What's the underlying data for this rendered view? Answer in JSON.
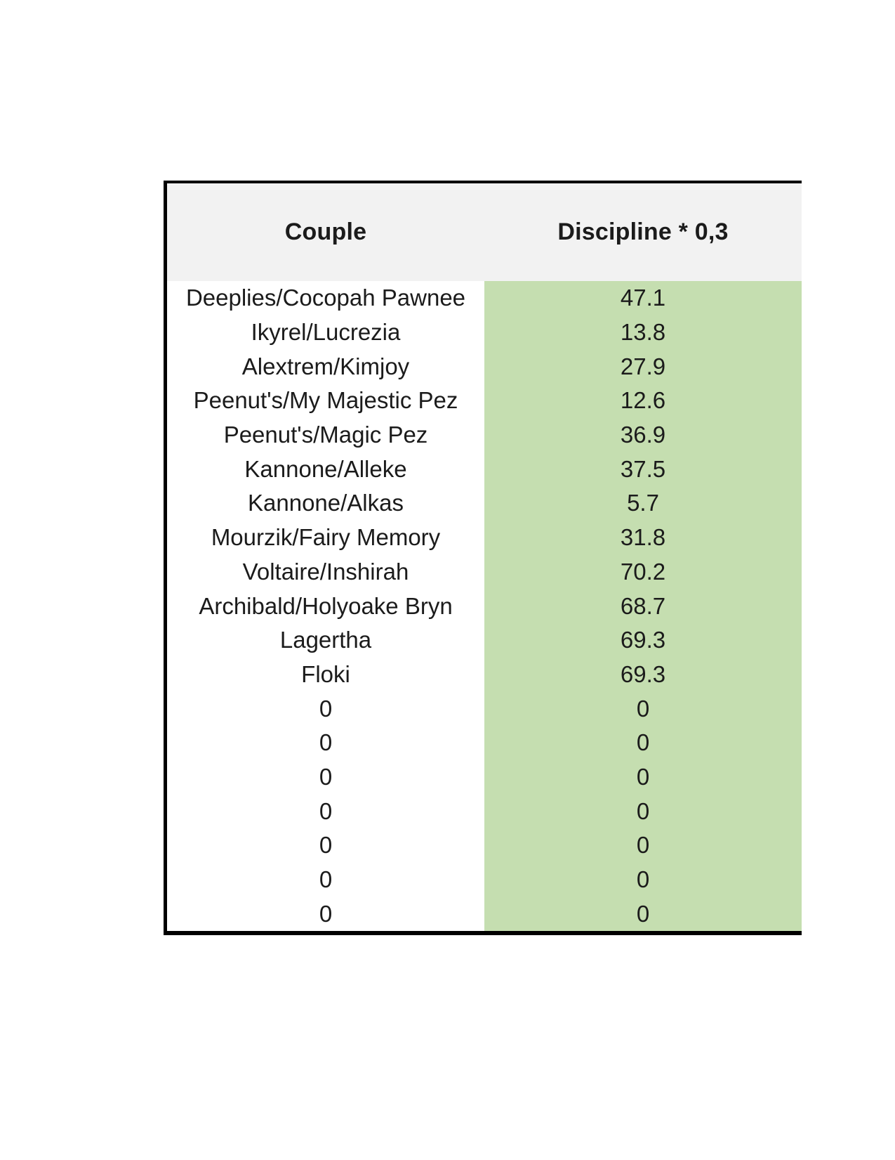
{
  "table": {
    "columns": [
      {
        "label": "Couple"
      },
      {
        "label": "Discipline * 0,3"
      }
    ],
    "rows": [
      {
        "couple": "Deeplies/Cocopah Pawnee",
        "value": "47.1"
      },
      {
        "couple": "Ikyrel/Lucrezia",
        "value": "13.8"
      },
      {
        "couple": "Alextrem/Kimjoy",
        "value": "27.9"
      },
      {
        "couple": "Peenut's/My Majestic Pez",
        "value": "12.6"
      },
      {
        "couple": "Peenut's/Magic Pez",
        "value": "36.9"
      },
      {
        "couple": "Kannone/Alleke",
        "value": "37.5"
      },
      {
        "couple": "Kannone/Alkas",
        "value": "5.7"
      },
      {
        "couple": "Mourzik/Fairy Memory",
        "value": "31.8"
      },
      {
        "couple": "Voltaire/Inshirah",
        "value": "70.2"
      },
      {
        "couple": "Archibald/Holyoake Bryn",
        "value": "68.7"
      },
      {
        "couple": "Lagertha",
        "value": "69.3"
      },
      {
        "couple": "Floki",
        "value": "69.3"
      },
      {
        "couple": "0",
        "value": "0"
      },
      {
        "couple": "0",
        "value": "0"
      },
      {
        "couple": "0",
        "value": "0"
      },
      {
        "couple": "0",
        "value": "0"
      },
      {
        "couple": "0",
        "value": "0"
      },
      {
        "couple": "0",
        "value": "0"
      },
      {
        "couple": "0",
        "value": "0"
      }
    ],
    "colors": {
      "header_bg": "#f2f2f2",
      "value_col_bg": "#c5deb0",
      "border": "#000000",
      "text": "#1b1b1b"
    }
  }
}
